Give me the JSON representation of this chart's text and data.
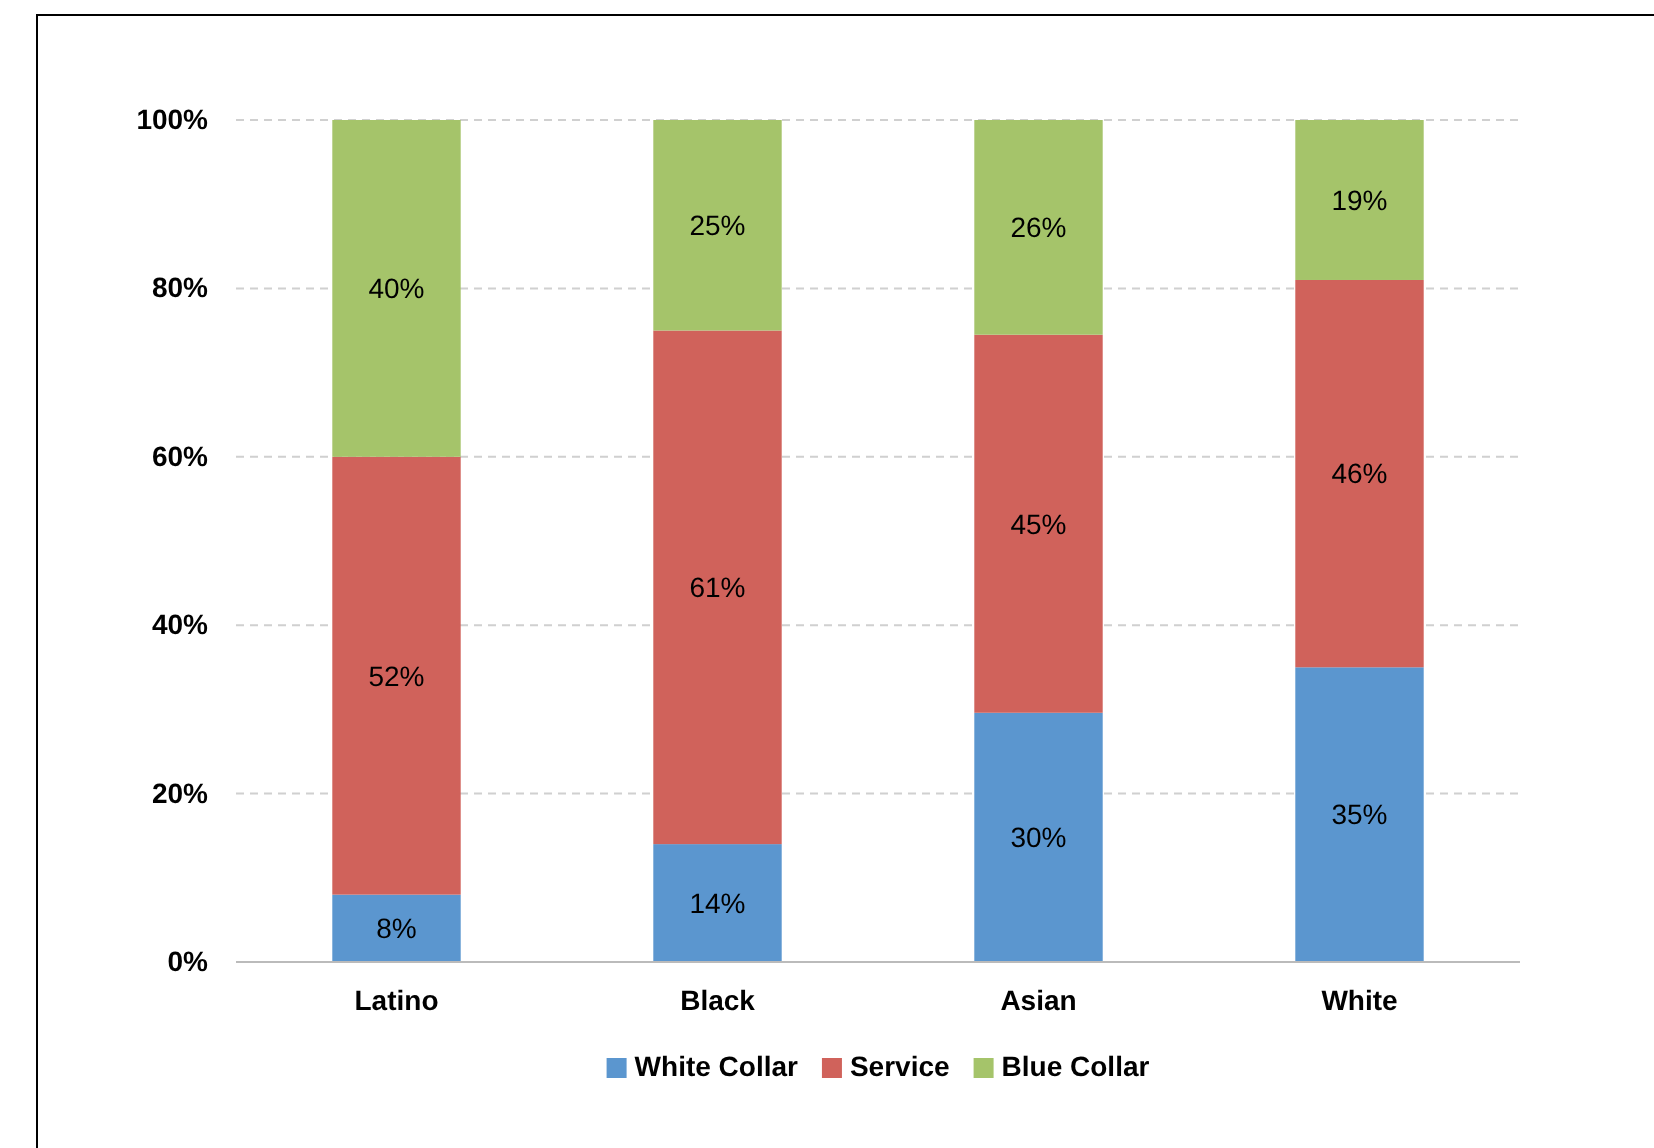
{
  "chart_data": {
    "type": "bar",
    "stacked": true,
    "categories": [
      "Latino",
      "Black",
      "Asian",
      "White"
    ],
    "series": [
      {
        "name": "White Collar",
        "color": "#5b96cf",
        "values": [
          8,
          14,
          29.6,
          35
        ],
        "value_labels": [
          "8%",
          "14%",
          "30%",
          "35%"
        ]
      },
      {
        "name": "Service",
        "color": "#d0625b",
        "values": [
          52,
          61,
          44.9,
          46
        ],
        "value_labels": [
          "52%",
          "61%",
          "45%",
          "46%"
        ]
      },
      {
        "name": "Blue Collar",
        "color": "#a5c46a",
        "values": [
          40,
          25,
          25.5,
          19
        ],
        "value_labels": [
          "40%",
          "25%",
          "26%",
          "19%"
        ]
      }
    ],
    "ylim": [
      0,
      100
    ],
    "yticks": [
      {
        "value": 0,
        "label": "0%"
      },
      {
        "value": 20,
        "label": "20%"
      },
      {
        "value": 40,
        "label": "40%"
      },
      {
        "value": 60,
        "label": "60%"
      },
      {
        "value": 80,
        "label": "80%"
      },
      {
        "value": 100,
        "label": "100%"
      }
    ],
    "grid": "y",
    "legend": "bottom"
  }
}
